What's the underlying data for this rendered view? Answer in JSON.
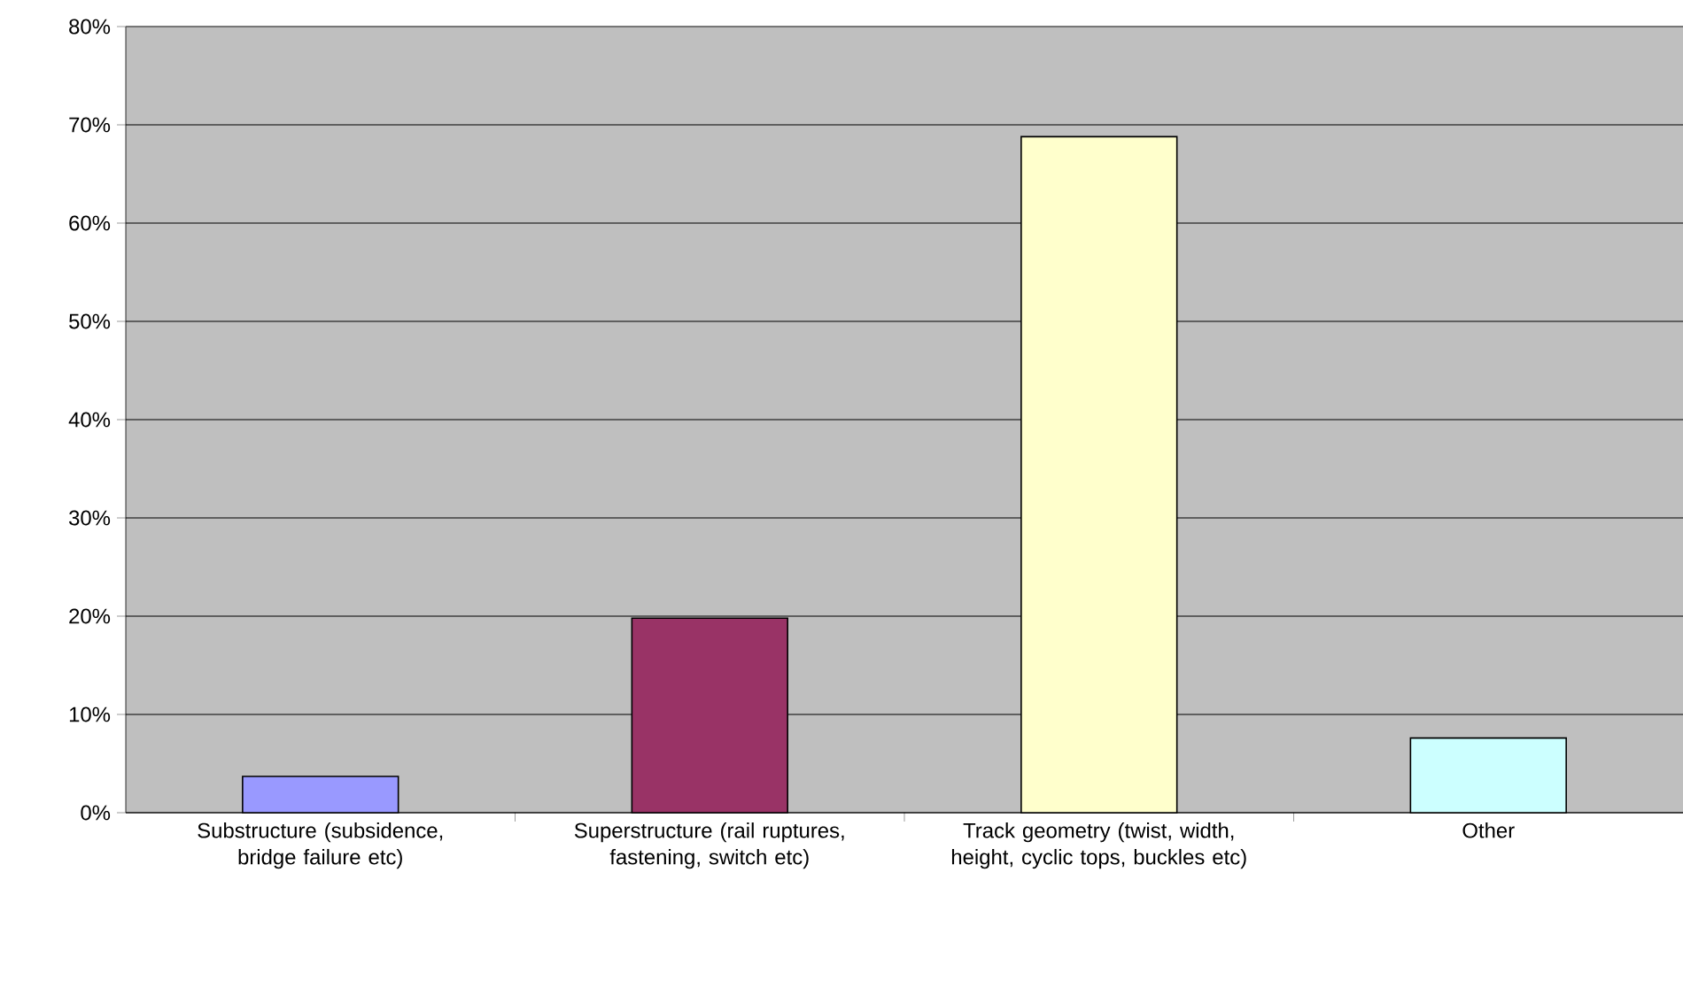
{
  "chart_data": {
    "type": "bar",
    "categories": [
      "Substructure (subsidence, bridge failure etc)",
      "Superstructure (rail ruptures, fastening, switch etc)",
      "Track geometry (twist, width, height, cyclic tops, buckles etc)",
      "Other"
    ],
    "values": [
      3.7,
      19.8,
      68.8,
      7.6
    ],
    "colors": [
      "#9999ff",
      "#993366",
      "#ffffcc",
      "#ccffff"
    ],
    "ylim": [
      0,
      80
    ],
    "yticks": [
      {
        "value": 0,
        "label": "0%"
      },
      {
        "value": 10,
        "label": "10%"
      },
      {
        "value": 20,
        "label": "20%"
      },
      {
        "value": 30,
        "label": "30%"
      },
      {
        "value": 40,
        "label": "40%"
      },
      {
        "value": 50,
        "label": "50%"
      },
      {
        "value": 60,
        "label": "60%"
      },
      {
        "value": 70,
        "label": "70%"
      },
      {
        "value": 80,
        "label": "80%"
      }
    ],
    "grid": "y"
  }
}
